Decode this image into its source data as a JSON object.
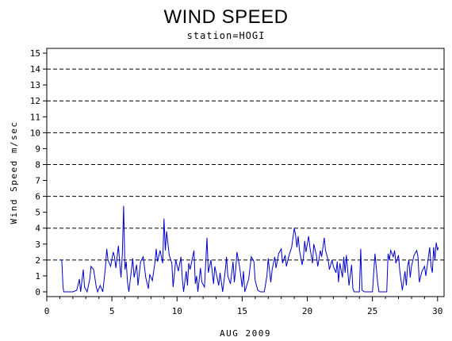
{
  "chart_data": {
    "type": "line",
    "title": "WIND SPEED",
    "subtitle": "station=HOGI",
    "xlabel": "AUG 2009",
    "ylabel": "Wind Speed m/sec",
    "xlim": [
      0,
      30.5
    ],
    "ylim": [
      -0.3,
      15.3
    ],
    "x_ticks": [
      0,
      5,
      10,
      15,
      20,
      25,
      30
    ],
    "y_ticks": [
      0,
      1,
      2,
      3,
      4,
      5,
      6,
      7,
      8,
      9,
      10,
      11,
      12,
      13,
      14,
      15
    ],
    "gridlines_y": [
      2,
      4,
      6,
      8,
      10,
      12,
      14
    ],
    "line_color": "#0000cc",
    "series": [
      {
        "values": [
          [
            1.0,
            2.0
          ],
          [
            1.15,
            2.0
          ],
          [
            1.25,
            0.3
          ],
          [
            1.3,
            0.0
          ],
          [
            2.0,
            0.0
          ],
          [
            2.3,
            0.1
          ],
          [
            2.5,
            0.8
          ],
          [
            2.6,
            0.0
          ],
          [
            2.8,
            1.4
          ],
          [
            2.9,
            0.3
          ],
          [
            3.1,
            0.0
          ],
          [
            3.3,
            0.8
          ],
          [
            3.4,
            1.6
          ],
          [
            3.6,
            1.4
          ],
          [
            3.8,
            0.3
          ],
          [
            3.9,
            0.0
          ],
          [
            4.1,
            0.4
          ],
          [
            4.3,
            0.0
          ],
          [
            4.5,
            1.5
          ],
          [
            4.6,
            2.7
          ],
          [
            4.7,
            2.0
          ],
          [
            4.9,
            1.6
          ],
          [
            5.1,
            2.5
          ],
          [
            5.2,
            2.2
          ],
          [
            5.3,
            1.5
          ],
          [
            5.5,
            2.9
          ],
          [
            5.6,
            1.8
          ],
          [
            5.7,
            0.9
          ],
          [
            5.8,
            2.4
          ],
          [
            5.9,
            5.4
          ],
          [
            6.0,
            1.4
          ],
          [
            6.1,
            1.9
          ],
          [
            6.2,
            0.6
          ],
          [
            6.3,
            0.0
          ],
          [
            6.5,
            1.4
          ],
          [
            6.6,
            2.1
          ],
          [
            6.7,
            0.9
          ],
          [
            6.9,
            1.7
          ],
          [
            7.0,
            0.4
          ],
          [
            7.2,
            1.9
          ],
          [
            7.4,
            2.2
          ],
          [
            7.6,
            0.9
          ],
          [
            7.8,
            0.2
          ],
          [
            7.9,
            1.1
          ],
          [
            8.1,
            0.7
          ],
          [
            8.3,
            1.8
          ],
          [
            8.4,
            2.7
          ],
          [
            8.5,
            1.9
          ],
          [
            8.7,
            2.6
          ],
          [
            8.9,
            1.8
          ],
          [
            9.0,
            4.6
          ],
          [
            9.1,
            2.6
          ],
          [
            9.2,
            3.8
          ],
          [
            9.4,
            2.3
          ],
          [
            9.6,
            1.8
          ],
          [
            9.7,
            0.3
          ],
          [
            9.9,
            2.0
          ],
          [
            10.1,
            1.3
          ],
          [
            10.3,
            2.2
          ],
          [
            10.4,
            0.9
          ],
          [
            10.5,
            0.0
          ],
          [
            10.7,
            1.3
          ],
          [
            10.8,
            0.4
          ],
          [
            10.9,
            1.8
          ],
          [
            11.0,
            1.4
          ],
          [
            11.3,
            2.6
          ],
          [
            11.4,
            0.5
          ],
          [
            11.5,
            1.0
          ],
          [
            11.6,
            0.0
          ],
          [
            11.8,
            1.5
          ],
          [
            11.9,
            0.6
          ],
          [
            12.1,
            0.3
          ],
          [
            12.2,
            1.8
          ],
          [
            12.3,
            3.4
          ],
          [
            12.4,
            1.2
          ],
          [
            12.6,
            2.0
          ],
          [
            12.8,
            0.5
          ],
          [
            12.9,
            1.6
          ],
          [
            13.2,
            0.4
          ],
          [
            13.3,
            1.2
          ],
          [
            13.5,
            0.0
          ],
          [
            13.7,
            1.3
          ],
          [
            13.8,
            2.2
          ],
          [
            13.9,
            1.0
          ],
          [
            14.1,
            0.5
          ],
          [
            14.3,
            1.9
          ],
          [
            14.4,
            0.6
          ],
          [
            14.5,
            1.4
          ],
          [
            14.6,
            2.5
          ],
          [
            14.8,
            1.6
          ],
          [
            15.0,
            0.3
          ],
          [
            15.1,
            1.3
          ],
          [
            15.2,
            0.0
          ],
          [
            15.5,
            0.8
          ],
          [
            15.7,
            2.2
          ],
          [
            15.9,
            1.9
          ],
          [
            16.0,
            0.7
          ],
          [
            16.2,
            0.1
          ],
          [
            16.4,
            0.0
          ],
          [
            16.7,
            0.0
          ],
          [
            16.9,
            1.0
          ],
          [
            17.0,
            2.1
          ],
          [
            17.2,
            0.6
          ],
          [
            17.3,
            1.4
          ],
          [
            17.5,
            2.2
          ],
          [
            17.6,
            1.5
          ],
          [
            17.8,
            2.4
          ],
          [
            18.0,
            2.7
          ],
          [
            18.1,
            1.8
          ],
          [
            18.3,
            2.3
          ],
          [
            18.4,
            1.6
          ],
          [
            18.6,
            2.3
          ],
          [
            18.8,
            2.8
          ],
          [
            19.0,
            4.0
          ],
          [
            19.1,
            3.6
          ],
          [
            19.2,
            2.8
          ],
          [
            19.3,
            3.5
          ],
          [
            19.4,
            2.6
          ],
          [
            19.6,
            1.7
          ],
          [
            19.7,
            2.1
          ],
          [
            19.8,
            3.2
          ],
          [
            19.9,
            2.5
          ],
          [
            20.1,
            3.5
          ],
          [
            20.2,
            2.8
          ],
          [
            20.4,
            1.8
          ],
          [
            20.5,
            3.0
          ],
          [
            20.7,
            2.3
          ],
          [
            20.8,
            1.6
          ],
          [
            21.0,
            2.6
          ],
          [
            21.1,
            2.2
          ],
          [
            21.3,
            3.4
          ],
          [
            21.4,
            2.6
          ],
          [
            21.6,
            2.0
          ],
          [
            21.7,
            1.4
          ],
          [
            21.9,
            2.0
          ],
          [
            22.0,
            1.6
          ],
          [
            22.2,
            1.2
          ],
          [
            22.3,
            1.9
          ],
          [
            22.4,
            0.6
          ],
          [
            22.5,
            1.8
          ],
          [
            22.7,
            0.9
          ],
          [
            22.8,
            2.2
          ],
          [
            22.9,
            1.2
          ],
          [
            23.0,
            2.3
          ],
          [
            23.1,
            1.4
          ],
          [
            23.2,
            0.4
          ],
          [
            23.4,
            1.7
          ],
          [
            23.5,
            0.2
          ],
          [
            23.6,
            0.0
          ],
          [
            24.0,
            0.0
          ],
          [
            24.1,
            2.7
          ],
          [
            24.2,
            0.1
          ],
          [
            24.4,
            0.0
          ],
          [
            25.0,
            0.0
          ],
          [
            25.2,
            2.4
          ],
          [
            25.4,
            0.6
          ],
          [
            25.5,
            0.0
          ],
          [
            25.9,
            0.0
          ],
          [
            26.1,
            0.0
          ],
          [
            26.2,
            2.4
          ],
          [
            26.3,
            2.0
          ],
          [
            26.4,
            2.6
          ],
          [
            26.6,
            2.2
          ],
          [
            26.7,
            2.6
          ],
          [
            26.8,
            1.8
          ],
          [
            27.0,
            2.3
          ],
          [
            27.1,
            1.3
          ],
          [
            27.3,
            0.1
          ],
          [
            27.5,
            1.3
          ],
          [
            27.6,
            0.4
          ],
          [
            27.7,
            1.6
          ],
          [
            27.8,
            2.0
          ],
          [
            27.9,
            0.9
          ],
          [
            28.0,
            1.6
          ],
          [
            28.2,
            2.3
          ],
          [
            28.4,
            2.6
          ],
          [
            28.5,
            2.2
          ],
          [
            28.6,
            0.6
          ],
          [
            28.8,
            1.3
          ],
          [
            29.0,
            1.6
          ],
          [
            29.1,
            1.0
          ],
          [
            29.3,
            2.2
          ],
          [
            29.4,
            2.8
          ],
          [
            29.5,
            1.6
          ],
          [
            29.6,
            1.2
          ],
          [
            29.7,
            2.8
          ],
          [
            29.8,
            2.0
          ],
          [
            29.9,
            3.1
          ],
          [
            30.0,
            2.6
          ],
          [
            30.05,
            2.8
          ]
        ]
      }
    ]
  }
}
